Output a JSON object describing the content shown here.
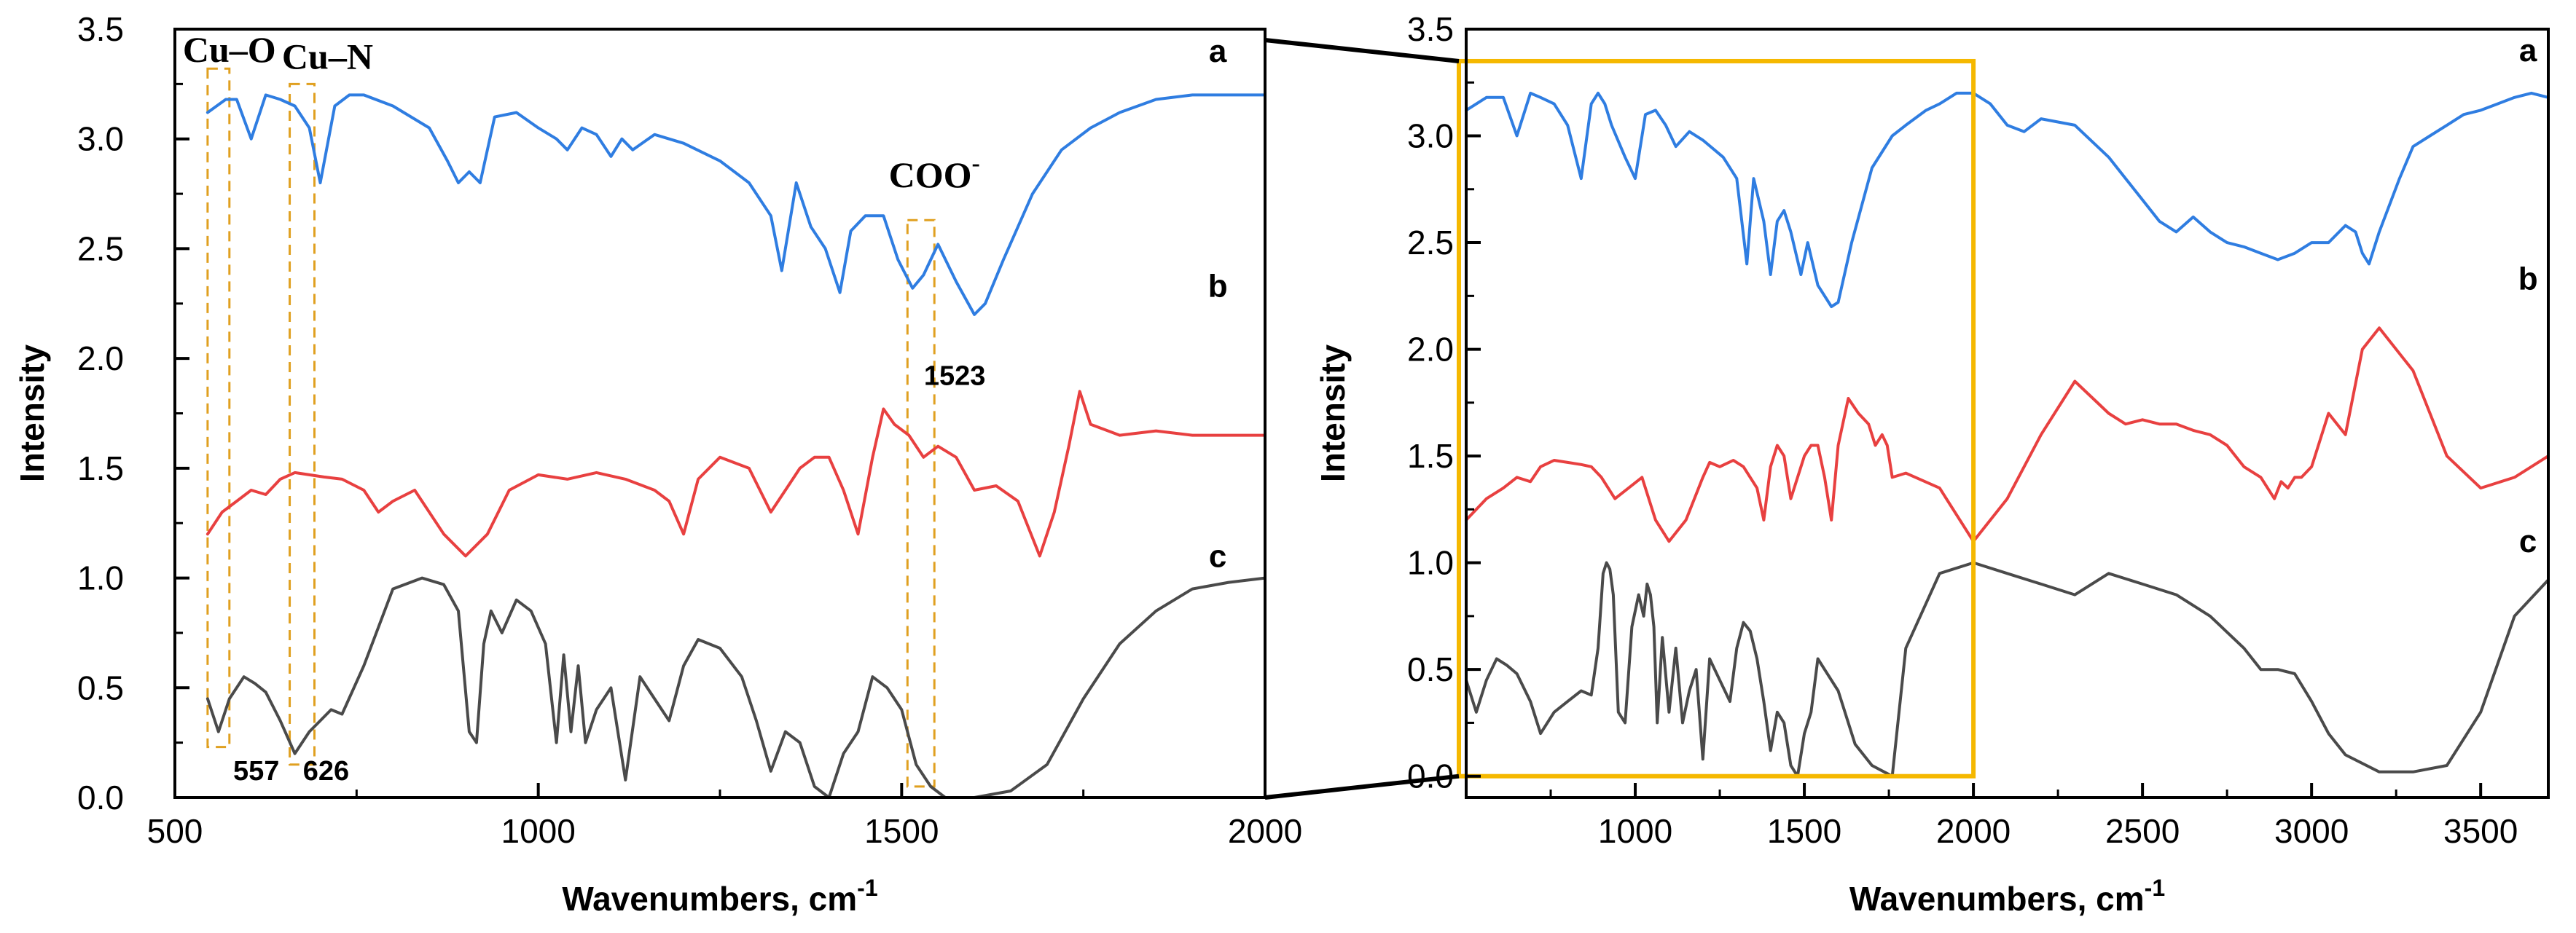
{
  "chart_data": [
    {
      "type": "line",
      "panel": "left",
      "title": "",
      "xlabel": "Wavenumbers, cm",
      "xlabel_sup": "-1",
      "ylabel": "Intensity",
      "xlim": [
        500,
        2000
      ],
      "ylim": [
        0.0,
        3.5
      ],
      "xticks": [
        500,
        1000,
        1500,
        2000
      ],
      "yticks": [
        0.0,
        0.5,
        1.0,
        1.5,
        2.0,
        2.5,
        3.0,
        3.5
      ],
      "ytick_labels": [
        "0.0",
        "0.5",
        "1.0",
        "1.5",
        "2.0",
        "2.5",
        "3.0",
        "3.5"
      ],
      "series": [
        {
          "name": "a",
          "color": "#2f7de1",
          "x": [
            545,
            570,
            585,
            605,
            625,
            645,
            665,
            685,
            700,
            720,
            740,
            760,
            800,
            850,
            875,
            890,
            905,
            920,
            940,
            970,
            1000,
            1025,
            1040,
            1060,
            1080,
            1100,
            1115,
            1130,
            1160,
            1200,
            1250,
            1290,
            1320,
            1335,
            1355,
            1375,
            1395,
            1415,
            1430,
            1450,
            1475,
            1495,
            1515,
            1530,
            1550,
            1575,
            1600,
            1615,
            1640,
            1680,
            1720,
            1760,
            1800,
            1850,
            1900,
            1950,
            2000
          ],
          "y": [
            3.12,
            3.18,
            3.18,
            3.0,
            3.2,
            3.18,
            3.15,
            3.05,
            2.8,
            3.15,
            3.2,
            3.2,
            3.15,
            3.05,
            2.9,
            2.8,
            2.85,
            2.8,
            3.1,
            3.12,
            3.05,
            3.0,
            2.95,
            3.05,
            3.02,
            2.92,
            3.0,
            2.95,
            3.02,
            2.98,
            2.9,
            2.8,
            2.65,
            2.4,
            2.8,
            2.6,
            2.5,
            2.3,
            2.58,
            2.65,
            2.65,
            2.45,
            2.32,
            2.38,
            2.52,
            2.35,
            2.2,
            2.25,
            2.45,
            2.75,
            2.95,
            3.05,
            3.12,
            3.18,
            3.2,
            3.2,
            3.2
          ]
        },
        {
          "name": "b",
          "color": "#e84040",
          "x": [
            545,
            565,
            585,
            605,
            625,
            645,
            665,
            685,
            705,
            730,
            760,
            780,
            800,
            830,
            870,
            900,
            930,
            960,
            1000,
            1040,
            1080,
            1120,
            1160,
            1180,
            1200,
            1220,
            1250,
            1290,
            1320,
            1340,
            1360,
            1380,
            1400,
            1420,
            1440,
            1460,
            1475,
            1490,
            1510,
            1530,
            1550,
            1575,
            1600,
            1630,
            1660,
            1690,
            1710,
            1730,
            1745,
            1760,
            1800,
            1850,
            1900,
            1950,
            2000
          ],
          "y": [
            1.2,
            1.3,
            1.35,
            1.4,
            1.38,
            1.45,
            1.48,
            1.47,
            1.46,
            1.45,
            1.4,
            1.3,
            1.35,
            1.4,
            1.2,
            1.1,
            1.2,
            1.4,
            1.47,
            1.45,
            1.48,
            1.45,
            1.4,
            1.35,
            1.2,
            1.45,
            1.55,
            1.5,
            1.3,
            1.4,
            1.5,
            1.55,
            1.55,
            1.4,
            1.2,
            1.55,
            1.77,
            1.7,
            1.65,
            1.55,
            1.6,
            1.55,
            1.4,
            1.42,
            1.35,
            1.1,
            1.3,
            1.6,
            1.85,
            1.7,
            1.65,
            1.67,
            1.65,
            1.65,
            1.65
          ]
        },
        {
          "name": "c",
          "color": "#4a4a4a",
          "x": [
            545,
            560,
            575,
            595,
            610,
            625,
            645,
            665,
            685,
            700,
            715,
            730,
            760,
            800,
            840,
            870,
            890,
            905,
            915,
            925,
            935,
            950,
            970,
            990,
            1010,
            1025,
            1035,
            1045,
            1055,
            1065,
            1080,
            1100,
            1120,
            1140,
            1160,
            1180,
            1200,
            1220,
            1250,
            1280,
            1300,
            1320,
            1340,
            1360,
            1380,
            1400,
            1420,
            1440,
            1460,
            1480,
            1500,
            1520,
            1540,
            1560,
            1600,
            1650,
            1700,
            1750,
            1800,
            1850,
            1900,
            1950,
            2000
          ],
          "y": [
            0.45,
            0.3,
            0.45,
            0.55,
            0.52,
            0.48,
            0.35,
            0.2,
            0.3,
            0.35,
            0.4,
            0.38,
            0.6,
            0.95,
            1.0,
            0.97,
            0.85,
            0.3,
            0.25,
            0.7,
            0.85,
            0.75,
            0.9,
            0.85,
            0.7,
            0.25,
            0.65,
            0.3,
            0.6,
            0.25,
            0.4,
            0.5,
            0.08,
            0.55,
            0.45,
            0.35,
            0.6,
            0.72,
            0.68,
            0.55,
            0.35,
            0.12,
            0.3,
            0.25,
            0.05,
            0.0,
            0.2,
            0.3,
            0.55,
            0.5,
            0.4,
            0.15,
            0.05,
            0.0,
            0.0,
            0.03,
            0.15,
            0.45,
            0.7,
            0.85,
            0.95,
            0.98,
            1.0
          ]
        }
      ],
      "series_labels": [
        {
          "text": "a",
          "x": 1935,
          "y": 3.35
        },
        {
          "text": "b",
          "x": 1935,
          "y": 2.28
        },
        {
          "text": "c",
          "x": 1935,
          "y": 1.05
        }
      ],
      "annotations": [
        {
          "text": "Cu–O",
          "x": 575,
          "y": 3.35,
          "style": "serif"
        },
        {
          "text": "Cu–N",
          "x": 710,
          "y": 3.32,
          "style": "serif"
        },
        {
          "text": "COO",
          "x": 1545,
          "y": 2.78,
          "sup": "-",
          "style": "serif"
        },
        {
          "text": "1523",
          "x": 1573,
          "y": 1.88,
          "style": "num"
        },
        {
          "text": "557",
          "x": 612,
          "y": 0.08,
          "style": "num"
        },
        {
          "text": "626",
          "x": 708,
          "y": 0.08,
          "style": "num"
        }
      ],
      "dashed_boxes": [
        {
          "x": [
            545,
            575
          ],
          "y": [
            0.23,
            3.32
          ]
        },
        {
          "x": [
            658,
            692
          ],
          "y": [
            0.15,
            3.25
          ]
        },
        {
          "x": [
            1508,
            1545
          ],
          "y": [
            0.05,
            2.63
          ]
        }
      ]
    },
    {
      "type": "line",
      "panel": "right",
      "title": "",
      "xlabel": "Wavenumbers, cm",
      "xlabel_sup": "-1",
      "ylabel": "Intensity",
      "xlim": [
        500,
        3700
      ],
      "ylim": [
        -0.1,
        3.5
      ],
      "xticks": [
        1000,
        1500,
        2000,
        2500,
        3000,
        3500
      ],
      "yticks": [
        0.0,
        0.5,
        1.0,
        1.5,
        2.0,
        2.5,
        3.0,
        3.5
      ],
      "ytick_labels": [
        "0.0",
        "0.5",
        "1.0",
        "1.5",
        "2.0",
        "2.5",
        "3.0",
        "3.5"
      ],
      "series": [
        {
          "name": "a",
          "color": "#2f7de1",
          "x": [
            500,
            560,
            610,
            650,
            690,
            720,
            760,
            800,
            840,
            870,
            890,
            910,
            930,
            970,
            1000,
            1030,
            1060,
            1090,
            1120,
            1160,
            1200,
            1260,
            1300,
            1330,
            1350,
            1380,
            1400,
            1420,
            1440,
            1460,
            1490,
            1510,
            1540,
            1560,
            1580,
            1600,
            1640,
            1700,
            1760,
            1800,
            1860,
            1900,
            1950,
            2000,
            2050,
            2100,
            2150,
            2200,
            2300,
            2400,
            2450,
            2500,
            2550,
            2600,
            2650,
            2700,
            2750,
            2800,
            2850,
            2900,
            2950,
            3000,
            3050,
            3100,
            3130,
            3150,
            3170,
            3200,
            3260,
            3300,
            3350,
            3400,
            3450,
            3500,
            3550,
            3600,
            3650,
            3700
          ],
          "y": [
            3.12,
            3.18,
            3.18,
            3.0,
            3.2,
            3.18,
            3.15,
            3.05,
            2.8,
            3.15,
            3.2,
            3.15,
            3.05,
            2.9,
            2.8,
            3.1,
            3.12,
            3.05,
            2.95,
            3.02,
            2.98,
            2.9,
            2.8,
            2.4,
            2.8,
            2.6,
            2.35,
            2.6,
            2.65,
            2.55,
            2.35,
            2.5,
            2.3,
            2.25,
            2.2,
            2.22,
            2.5,
            2.85,
            3.0,
            3.05,
            3.12,
            3.15,
            3.2,
            3.2,
            3.15,
            3.05,
            3.02,
            3.08,
            3.05,
            2.9,
            2.8,
            2.7,
            2.6,
            2.55,
            2.62,
            2.55,
            2.5,
            2.48,
            2.45,
            2.42,
            2.45,
            2.5,
            2.5,
            2.58,
            2.55,
            2.45,
            2.4,
            2.55,
            2.8,
            2.95,
            3.0,
            3.05,
            3.1,
            3.12,
            3.15,
            3.18,
            3.2,
            3.18
          ]
        },
        {
          "name": "b",
          "color": "#e84040",
          "x": [
            500,
            560,
            610,
            650,
            690,
            720,
            760,
            800,
            840,
            870,
            900,
            940,
            980,
            1020,
            1060,
            1100,
            1150,
            1200,
            1220,
            1250,
            1290,
            1320,
            1340,
            1360,
            1380,
            1400,
            1420,
            1440,
            1460,
            1480,
            1500,
            1520,
            1540,
            1560,
            1580,
            1600,
            1630,
            1660,
            1690,
            1710,
            1730,
            1745,
            1760,
            1800,
            1900,
            2000,
            2100,
            2200,
            2300,
            2400,
            2450,
            2500,
            2550,
            2600,
            2650,
            2700,
            2750,
            2800,
            2850,
            2870,
            2890,
            2910,
            2930,
            2950,
            2970,
            3000,
            3050,
            3100,
            3150,
            3200,
            3300,
            3400,
            3500,
            3600,
            3700
          ],
          "y": [
            1.2,
            1.3,
            1.35,
            1.4,
            1.38,
            1.45,
            1.48,
            1.47,
            1.46,
            1.45,
            1.4,
            1.3,
            1.35,
            1.4,
            1.2,
            1.1,
            1.2,
            1.4,
            1.47,
            1.45,
            1.48,
            1.45,
            1.4,
            1.35,
            1.2,
            1.45,
            1.55,
            1.5,
            1.3,
            1.4,
            1.5,
            1.55,
            1.55,
            1.4,
            1.2,
            1.55,
            1.77,
            1.7,
            1.65,
            1.55,
            1.6,
            1.55,
            1.4,
            1.42,
            1.35,
            1.1,
            1.3,
            1.6,
            1.85,
            1.7,
            1.65,
            1.67,
            1.65,
            1.65,
            1.62,
            1.6,
            1.55,
            1.45,
            1.4,
            1.35,
            1.3,
            1.38,
            1.35,
            1.4,
            1.4,
            1.45,
            1.7,
            1.6,
            2.0,
            2.1,
            1.9,
            1.5,
            1.35,
            1.4,
            1.5
          ]
        },
        {
          "name": "c",
          "color": "#4a4a4a",
          "x": [
            500,
            530,
            560,
            590,
            620,
            650,
            690,
            720,
            760,
            800,
            840,
            870,
            890,
            905,
            915,
            925,
            935,
            950,
            970,
            990,
            1010,
            1025,
            1035,
            1045,
            1055,
            1065,
            1080,
            1100,
            1120,
            1140,
            1160,
            1180,
            1200,
            1220,
            1250,
            1280,
            1300,
            1320,
            1340,
            1360,
            1380,
            1400,
            1420,
            1440,
            1460,
            1480,
            1500,
            1520,
            1540,
            1560,
            1600,
            1650,
            1700,
            1760,
            1800,
            1900,
            2000,
            2100,
            2200,
            2300,
            2400,
            2500,
            2600,
            2700,
            2800,
            2850,
            2900,
            2950,
            3000,
            3050,
            3100,
            3200,
            3300,
            3400,
            3500,
            3600,
            3700
          ],
          "y": [
            0.45,
            0.3,
            0.45,
            0.55,
            0.52,
            0.48,
            0.35,
            0.2,
            0.3,
            0.35,
            0.4,
            0.38,
            0.6,
            0.95,
            1.0,
            0.97,
            0.85,
            0.3,
            0.25,
            0.7,
            0.85,
            0.75,
            0.9,
            0.85,
            0.7,
            0.25,
            0.65,
            0.3,
            0.6,
            0.25,
            0.4,
            0.5,
            0.08,
            0.55,
            0.45,
            0.35,
            0.6,
            0.72,
            0.68,
            0.55,
            0.35,
            0.12,
            0.3,
            0.25,
            0.05,
            0.0,
            0.2,
            0.3,
            0.55,
            0.5,
            0.4,
            0.15,
            0.05,
            0.0,
            0.6,
            0.95,
            1.0,
            0.95,
            0.9,
            0.85,
            0.95,
            0.9,
            0.85,
            0.75,
            0.6,
            0.5,
            0.5,
            0.48,
            0.35,
            0.2,
            0.1,
            0.02,
            0.02,
            0.05,
            0.3,
            0.75,
            0.92
          ]
        }
      ],
      "series_labels": [
        {
          "text": "a",
          "x": 3640,
          "y": 3.35
        },
        {
          "text": "b",
          "x": 3640,
          "y": 2.28
        },
        {
          "text": "c",
          "x": 3640,
          "y": 1.05
        }
      ],
      "zoom_region": {
        "x": [
          500,
          2000
        ],
        "y": [
          0.0,
          3.35
        ]
      }
    }
  ]
}
